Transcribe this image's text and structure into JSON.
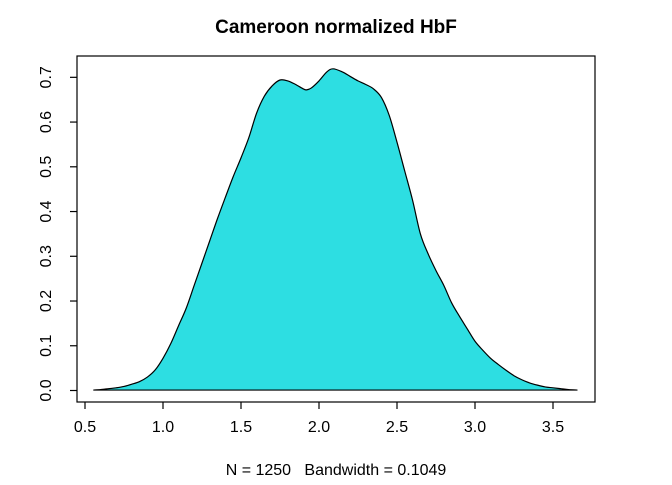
{
  "title": "Cameroon normalized HbF",
  "xlabel": "N = 1250   Bandwidth = 0.1049",
  "chart_data": {
    "type": "area",
    "title": "Cameroon normalized HbF",
    "xlabel": "N = 1250   Bandwidth = 0.1049",
    "ylabel": "",
    "x_tick_labels": [
      "0.5",
      "1.0",
      "1.5",
      "2.0",
      "2.5",
      "3.0",
      "3.5"
    ],
    "x_tick_values": [
      0.5,
      1.0,
      1.5,
      2.0,
      2.5,
      3.0,
      3.5
    ],
    "y_tick_labels": [
      "0.0",
      "0.1",
      "0.2",
      "0.3",
      "0.4",
      "0.5",
      "0.6",
      "0.7"
    ],
    "y_tick_values": [
      0.0,
      0.1,
      0.2,
      0.3,
      0.4,
      0.5,
      0.6,
      0.7
    ],
    "xlim": [
      0.449,
      3.769
    ],
    "ylim": [
      -0.026,
      0.748
    ],
    "grid": false,
    "legend": false,
    "fill_color": "#2DDEE2",
    "line_color": "#000000",
    "n": 1250,
    "bandwidth": 0.1049,
    "series": [
      {
        "name": "density",
        "x": [
          0.556,
          0.6,
          0.65,
          0.7,
          0.75,
          0.8,
          0.85,
          0.9,
          0.95,
          1.0,
          1.05,
          1.1,
          1.15,
          1.2,
          1.25,
          1.3,
          1.35,
          1.4,
          1.45,
          1.5,
          1.55,
          1.6,
          1.65,
          1.7,
          1.75,
          1.8,
          1.85,
          1.9,
          1.92,
          1.95,
          2.0,
          2.05,
          2.09,
          2.15,
          2.2,
          2.25,
          2.3,
          2.35,
          2.4,
          2.45,
          2.5,
          2.55,
          2.6,
          2.65,
          2.7,
          2.75,
          2.8,
          2.85,
          2.9,
          2.95,
          3.0,
          3.05,
          3.1,
          3.15,
          3.2,
          3.25,
          3.3,
          3.35,
          3.4,
          3.45,
          3.5,
          3.55,
          3.6,
          3.654
        ],
        "y": [
          0.001,
          0.002,
          0.004,
          0.006,
          0.009,
          0.014,
          0.02,
          0.03,
          0.046,
          0.072,
          0.105,
          0.145,
          0.185,
          0.235,
          0.285,
          0.335,
          0.385,
          0.432,
          0.478,
          0.52,
          0.565,
          0.62,
          0.658,
          0.681,
          0.694,
          0.692,
          0.684,
          0.674,
          0.672,
          0.676,
          0.692,
          0.712,
          0.719,
          0.712,
          0.702,
          0.692,
          0.684,
          0.674,
          0.655,
          0.615,
          0.555,
          0.49,
          0.425,
          0.35,
          0.305,
          0.268,
          0.235,
          0.196,
          0.166,
          0.138,
          0.11,
          0.09,
          0.072,
          0.058,
          0.045,
          0.033,
          0.024,
          0.017,
          0.012,
          0.008,
          0.006,
          0.004,
          0.002,
          0.001
        ]
      }
    ]
  }
}
